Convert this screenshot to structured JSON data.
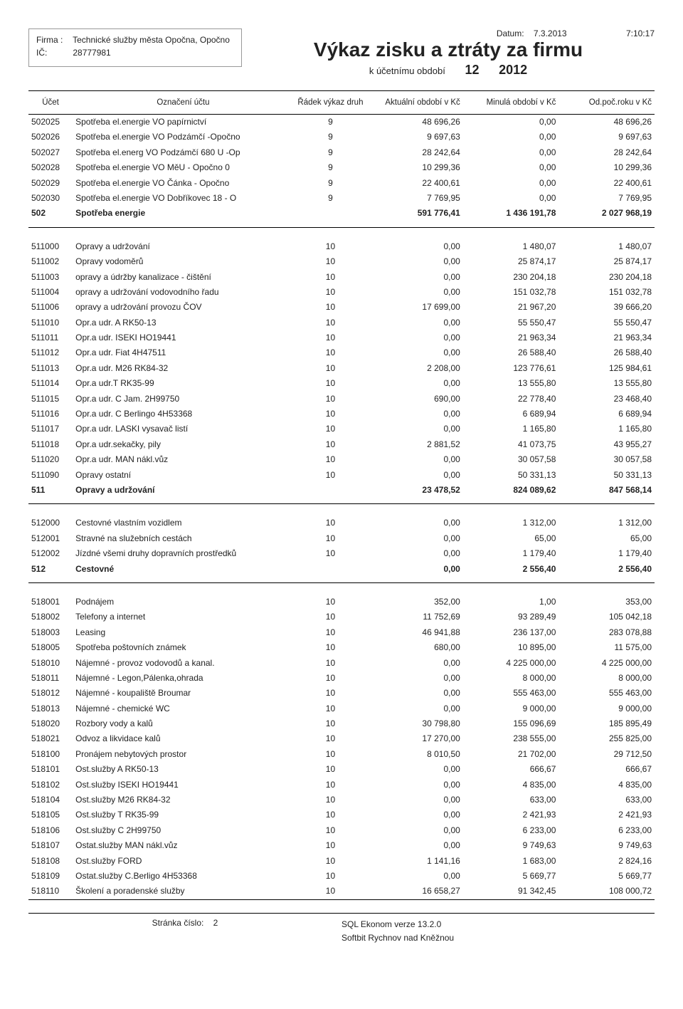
{
  "header": {
    "firma_label": "Firma :",
    "firma": "Technické služby města Opočna, Opočno",
    "ic_label": "IČ:",
    "ic": "28777981",
    "datum_label": "Datum:",
    "datum": "7.3.2013",
    "time": "7:10:17",
    "title": "Výkaz zisku a ztráty za firmu",
    "subtitle": "k účetnímu období",
    "period": "12",
    "year": "2012"
  },
  "columns": {
    "ucet": "Účet",
    "oznaceni": "Označení účtu",
    "radek": "Řádek výkaz druh",
    "aktualni": "Aktuální období v Kč",
    "minula": "Minulá období v Kč",
    "odpoc": "Od.poč.roku v Kč"
  },
  "rows": [
    {
      "u": "502025",
      "o": "Spotřeba el.energie VO papírnictví",
      "r": "9",
      "a": "48 696,26",
      "m": "0,00",
      "p": "48 696,26"
    },
    {
      "u": "502026",
      "o": "Spotřeba el.energie VO Podzámčí -Opočno",
      "r": "9",
      "a": "9 697,63",
      "m": "0,00",
      "p": "9 697,63"
    },
    {
      "u": "502027",
      "o": "Spotřeba el.energ VO Podzámčí 680 U -Op",
      "r": "9",
      "a": "28 242,64",
      "m": "0,00",
      "p": "28 242,64"
    },
    {
      "u": "502028",
      "o": "Spotřeba el.energie VO MěU - Opočno 0",
      "r": "9",
      "a": "10 299,36",
      "m": "0,00",
      "p": "10 299,36"
    },
    {
      "u": "502029",
      "o": "Spotřeba el.energie VO Čánka - Opočno",
      "r": "9",
      "a": "22 400,61",
      "m": "0,00",
      "p": "22 400,61"
    },
    {
      "u": "502030",
      "o": "Spotřeba el.energie VO Dobříkovec 18 - O",
      "r": "9",
      "a": "7 769,95",
      "m": "0,00",
      "p": "7 769,95"
    },
    {
      "u": "502",
      "o": "Spotřeba energie",
      "r": "",
      "a": "591 776,41",
      "m": "1 436 191,78",
      "p": "2 027 968,19",
      "total": true
    },
    {
      "section": true
    },
    {
      "u": "511000",
      "o": "Opravy a udržování",
      "r": "10",
      "a": "0,00",
      "m": "1 480,07",
      "p": "1 480,07"
    },
    {
      "u": "511002",
      "o": "Opravy vodoměrů",
      "r": "10",
      "a": "0,00",
      "m": "25 874,17",
      "p": "25 874,17"
    },
    {
      "u": "511003",
      "o": "opravy a údržby kanalizace - čištění",
      "r": "10",
      "a": "0,00",
      "m": "230 204,18",
      "p": "230 204,18"
    },
    {
      "u": "511004",
      "o": "opravy a udržování vodovodního řadu",
      "r": "10",
      "a": "0,00",
      "m": "151 032,78",
      "p": "151 032,78"
    },
    {
      "u": "511006",
      "o": "opravy a udržování provozu ČOV",
      "r": "10",
      "a": "17 699,00",
      "m": "21 967,20",
      "p": "39 666,20"
    },
    {
      "u": "511010",
      "o": "Opr.a udr. A RK50-13",
      "r": "10",
      "a": "0,00",
      "m": "55 550,47",
      "p": "55 550,47"
    },
    {
      "u": "511011",
      "o": "Opr.a udr. ISEKI HO19441",
      "r": "10",
      "a": "0,00",
      "m": "21 963,34",
      "p": "21 963,34"
    },
    {
      "u": "511012",
      "o": "Opr.a udr. Fiat 4H47511",
      "r": "10",
      "a": "0,00",
      "m": "26 588,40",
      "p": "26 588,40"
    },
    {
      "u": "511013",
      "o": "Opr.a udr. M26 RK84-32",
      "r": "10",
      "a": "2 208,00",
      "m": "123 776,61",
      "p": "125 984,61"
    },
    {
      "u": "511014",
      "o": "Opr.a udr.T RK35-99",
      "r": "10",
      "a": "0,00",
      "m": "13 555,80",
      "p": "13 555,80"
    },
    {
      "u": "511015",
      "o": "Opr.a udr. C Jam. 2H99750",
      "r": "10",
      "a": "690,00",
      "m": "22 778,40",
      "p": "23 468,40"
    },
    {
      "u": "511016",
      "o": "Opr.a udr. C Berlingo 4H53368",
      "r": "10",
      "a": "0,00",
      "m": "6 689,94",
      "p": "6 689,94"
    },
    {
      "u": "511017",
      "o": "Opr.a udr. LASKI vysavač listí",
      "r": "10",
      "a": "0,00",
      "m": "1 165,80",
      "p": "1 165,80"
    },
    {
      "u": "511018",
      "o": "Opr.a udr.sekačky, pily",
      "r": "10",
      "a": "2 881,52",
      "m": "41 073,75",
      "p": "43 955,27"
    },
    {
      "u": "511020",
      "o": "Opr.a udr. MAN nákl.vůz",
      "r": "10",
      "a": "0,00",
      "m": "30 057,58",
      "p": "30 057,58"
    },
    {
      "u": "511090",
      "o": "Opravy ostatní",
      "r": "10",
      "a": "0,00",
      "m": "50 331,13",
      "p": "50 331,13"
    },
    {
      "u": "511",
      "o": "Opravy a udržování",
      "r": "",
      "a": "23 478,52",
      "m": "824 089,62",
      "p": "847 568,14",
      "total": true
    },
    {
      "section": true
    },
    {
      "u": "512000",
      "o": "Cestovné vlastním vozidlem",
      "r": "10",
      "a": "0,00",
      "m": "1 312,00",
      "p": "1 312,00"
    },
    {
      "u": "512001",
      "o": "Stravné na služebních cestách",
      "r": "10",
      "a": "0,00",
      "m": "65,00",
      "p": "65,00"
    },
    {
      "u": "512002",
      "o": "Jízdné všemi druhy dopravních prostředků",
      "r": "10",
      "a": "0,00",
      "m": "1 179,40",
      "p": "1 179,40"
    },
    {
      "u": "512",
      "o": "Cestovné",
      "r": "",
      "a": "0,00",
      "m": "2 556,40",
      "p": "2 556,40",
      "total": true
    },
    {
      "section": true
    },
    {
      "u": "518001",
      "o": "Podnájem",
      "r": "10",
      "a": "352,00",
      "m": "1,00",
      "p": "353,00"
    },
    {
      "u": "518002",
      "o": "Telefony a internet",
      "r": "10",
      "a": "11 752,69",
      "m": "93 289,49",
      "p": "105 042,18"
    },
    {
      "u": "518003",
      "o": "Leasing",
      "r": "10",
      "a": "46 941,88",
      "m": "236 137,00",
      "p": "283 078,88"
    },
    {
      "u": "518005",
      "o": "Spotřeba poštovních známek",
      "r": "10",
      "a": "680,00",
      "m": "10 895,00",
      "p": "11 575,00"
    },
    {
      "u": "518010",
      "o": "Nájemné - provoz vodovodů a kanal.",
      "r": "10",
      "a": "0,00",
      "m": "4 225 000,00",
      "p": "4 225 000,00"
    },
    {
      "u": "518011",
      "o": "Nájemné - Legon,Pálenka,ohrada",
      "r": "10",
      "a": "0,00",
      "m": "8 000,00",
      "p": "8 000,00"
    },
    {
      "u": "518012",
      "o": "Nájemné - koupaliště Broumar",
      "r": "10",
      "a": "0,00",
      "m": "555 463,00",
      "p": "555 463,00"
    },
    {
      "u": "518013",
      "o": "Nájemné - chemické WC",
      "r": "10",
      "a": "0,00",
      "m": "9 000,00",
      "p": "9 000,00"
    },
    {
      "u": "518020",
      "o": "Rozbory vody a kalů",
      "r": "10",
      "a": "30 798,80",
      "m": "155 096,69",
      "p": "185 895,49"
    },
    {
      "u": "518021",
      "o": "Odvoz a likvidace kalů",
      "r": "10",
      "a": "17 270,00",
      "m": "238 555,00",
      "p": "255 825,00"
    },
    {
      "u": "518100",
      "o": "Pronájem nebytových prostor",
      "r": "10",
      "a": "8 010,50",
      "m": "21 702,00",
      "p": "29 712,50"
    },
    {
      "u": "518101",
      "o": "Ost.služby A RK50-13",
      "r": "10",
      "a": "0,00",
      "m": "666,67",
      "p": "666,67"
    },
    {
      "u": "518102",
      "o": "Ost.služby ISEKI HO19441",
      "r": "10",
      "a": "0,00",
      "m": "4 835,00",
      "p": "4 835,00"
    },
    {
      "u": "518104",
      "o": "Ost.služby M26 RK84-32",
      "r": "10",
      "a": "0,00",
      "m": "633,00",
      "p": "633,00"
    },
    {
      "u": "518105",
      "o": "Ost.služby T RK35-99",
      "r": "10",
      "a": "0,00",
      "m": "2 421,93",
      "p": "2 421,93"
    },
    {
      "u": "518106",
      "o": "Ost.služby C 2H99750",
      "r": "10",
      "a": "0,00",
      "m": "6 233,00",
      "p": "6 233,00"
    },
    {
      "u": "518107",
      "o": "Ostat.služby MAN nákl.vůz",
      "r": "10",
      "a": "0,00",
      "m": "9 749,63",
      "p": "9 749,63"
    },
    {
      "u": "518108",
      "o": "Ost.služby FORD",
      "r": "10",
      "a": "1 141,16",
      "m": "1 683,00",
      "p": "2 824,16"
    },
    {
      "u": "518109",
      "o": "Ostat.služby C.Berligo 4H53368",
      "r": "10",
      "a": "0,00",
      "m": "5 669,77",
      "p": "5 669,77"
    },
    {
      "u": "518110",
      "o": "Školení a poradenské služby",
      "r": "10",
      "a": "16 658,27",
      "m": "91 342,45",
      "p": "108 000,72",
      "lastbot": true
    }
  ],
  "footer": {
    "page_label": "Stránka číslo:",
    "page": "2",
    "ver": "SQL Ekonom verze 13.2.0",
    "vendor": "Softbit Rychnov nad Kněžnou"
  }
}
